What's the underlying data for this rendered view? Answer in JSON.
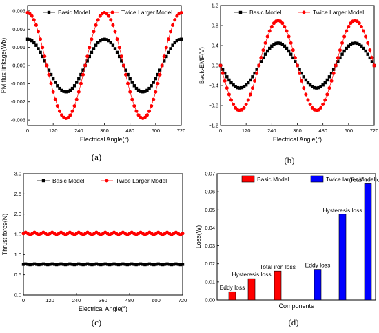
{
  "panels": [
    {
      "id": "a",
      "label": "(a)",
      "xlabel": "Electrical Angle(°)",
      "ylabel": "PM flux linkage(Wb)",
      "xticks": [
        "0",
        "120",
        "240",
        "360",
        "480",
        "600",
        "720"
      ],
      "yticks": [
        "-0.003",
        "-0.002",
        "-0.001",
        "0.000",
        "0.001",
        "0.002",
        "0.003"
      ],
      "legend": [
        "Basic Model",
        "Twice Larger Model"
      ]
    },
    {
      "id": "b",
      "label": "(b)",
      "xlabel": "Electrical Angle(°)",
      "ylabel": "Back-EMF(V)",
      "xticks": [
        "0",
        "120",
        "240",
        "360",
        "480",
        "600",
        "720"
      ],
      "yticks": [
        "-1.2",
        "-0.8",
        "-0.4",
        "0.0",
        "0.4",
        "0.8",
        "1.2"
      ],
      "legend": [
        "Basic Model",
        "Twice Larger Model"
      ]
    },
    {
      "id": "c",
      "label": "(c)",
      "xlabel": "Electrical Angle(°)",
      "ylabel": "Thrust force(N)",
      "xticks": [
        "0",
        "120",
        "240",
        "360",
        "480",
        "600",
        "720"
      ],
      "yticks": [
        "0.0",
        "0.5",
        "1.0",
        "1.5",
        "2.0",
        "2.5",
        "3.0"
      ],
      "legend": [
        "Basic Model",
        "Twice Larger Model"
      ]
    },
    {
      "id": "d",
      "label": "(d)",
      "xlabel": "Components",
      "ylabel": "Loss(W)",
      "yticks": [
        "0.00",
        "0.01",
        "0.02",
        "0.03",
        "0.04",
        "0.05",
        "0.06",
        "0.07"
      ],
      "legend": [
        "Basic Model",
        "Twice larger Model"
      ]
    }
  ],
  "colors": {
    "basic": "#000000",
    "twice": "#ff0000",
    "bar_basic": "#ff0000",
    "bar_twice": "#0000ff"
  },
  "chart_data": [
    {
      "type": "scatter",
      "panel": "a",
      "xlim": [
        0,
        720
      ],
      "ylim": [
        -0.0033,
        0.0033
      ],
      "series": [
        {
          "name": "Basic Model",
          "amplitude": 0.00145,
          "phase_deg": 0,
          "period_deg": 360,
          "shape": "cosine",
          "x_range": [
            0,
            720
          ],
          "n_points": 73,
          "marker": "square",
          "color": "#000000"
        },
        {
          "name": "Twice Larger Model",
          "amplitude": 0.0029,
          "phase_deg": 0,
          "period_deg": 360,
          "shape": "cosine",
          "x_range": [
            0,
            720
          ],
          "n_points": 73,
          "marker": "circle",
          "color": "#ff0000"
        }
      ]
    },
    {
      "type": "scatter",
      "panel": "b",
      "xlim": [
        0,
        720
      ],
      "ylim": [
        -1.2,
        1.2
      ],
      "series": [
        {
          "name": "Basic Model",
          "amplitude": 0.45,
          "phase_deg": 0,
          "period_deg": 360,
          "shape": "negative-sine",
          "x_range": [
            0,
            720
          ],
          "n_points": 73,
          "marker": "square",
          "color": "#000000"
        },
        {
          "name": "Twice Larger Model",
          "amplitude": 0.9,
          "phase_deg": 0,
          "period_deg": 360,
          "shape": "negative-sine",
          "x_range": [
            0,
            720
          ],
          "n_points": 73,
          "marker": "circle",
          "color": "#ff0000"
        }
      ]
    },
    {
      "type": "scatter",
      "panel": "c",
      "xlim": [
        0,
        720
      ],
      "ylim": [
        0,
        3.0
      ],
      "series": [
        {
          "name": "Basic Model",
          "mean": 0.76,
          "ripple": 0.01,
          "x_range": [
            0,
            720
          ],
          "n_points": 73,
          "marker": "square",
          "color": "#000000"
        },
        {
          "name": "Twice Larger Model",
          "mean": 1.52,
          "ripple": 0.03,
          "x_range": [
            0,
            720
          ],
          "n_points": 73,
          "marker": "circle",
          "color": "#ff0000"
        }
      ]
    },
    {
      "type": "bar",
      "panel": "d",
      "ylim": [
        0,
        0.07
      ],
      "bars": [
        {
          "label": "Eddy loss",
          "value": 0.0045,
          "series": "Basic Model"
        },
        {
          "label": "Hysteresis loss",
          "value": 0.0118,
          "series": "Basic Model"
        },
        {
          "label": "Total iron loss",
          "value": 0.016,
          "series": "Basic Model"
        },
        {
          "label": "Eddy loss",
          "value": 0.017,
          "series": "Twice larger Model"
        },
        {
          "label": "Hysteresis loss",
          "value": 0.0475,
          "series": "Twice larger Model"
        },
        {
          "label": "Total iron loss",
          "value": 0.0645,
          "series": "Twice larger Model"
        }
      ]
    }
  ]
}
